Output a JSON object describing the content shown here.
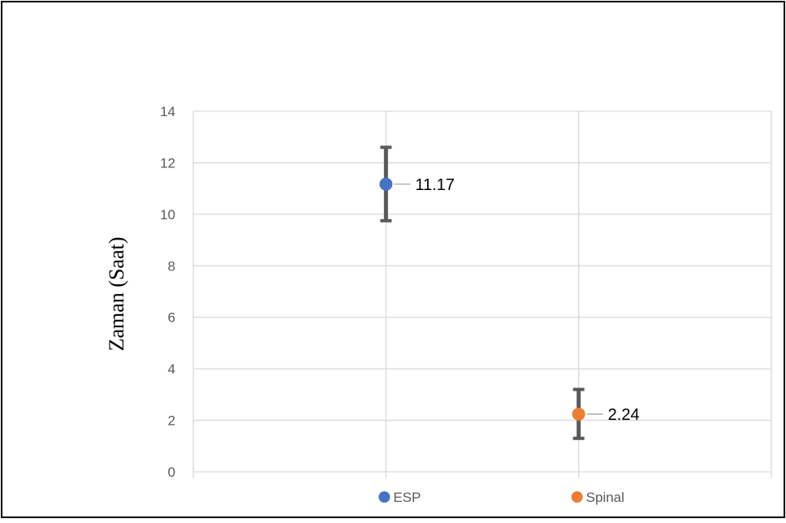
{
  "chart_data": {
    "type": "scatter",
    "title": "",
    "xlabel": "",
    "ylabel": "Zaman (Saat)",
    "ylim": [
      0,
      14
    ],
    "y_ticks": [
      0,
      2,
      4,
      6,
      8,
      10,
      12,
      14
    ],
    "categories": [
      "ESP",
      "Spinal"
    ],
    "grid": true,
    "legend_position": "bottom",
    "series": [
      {
        "name": "ESP",
        "x": 1,
        "y": 11.17,
        "label": "11.17",
        "error_low": 9.75,
        "error_high": 12.6,
        "color": "#4472C4"
      },
      {
        "name": "Spinal",
        "x": 2,
        "y": 2.24,
        "label": "2.24",
        "error_low": 1.3,
        "error_high": 3.2,
        "color": "#ED7D31"
      }
    ],
    "colors": {
      "gridline": "#d9d9d9",
      "error_bar": "#595959",
      "axis_text": "#595959",
      "frame": "#000000"
    }
  }
}
